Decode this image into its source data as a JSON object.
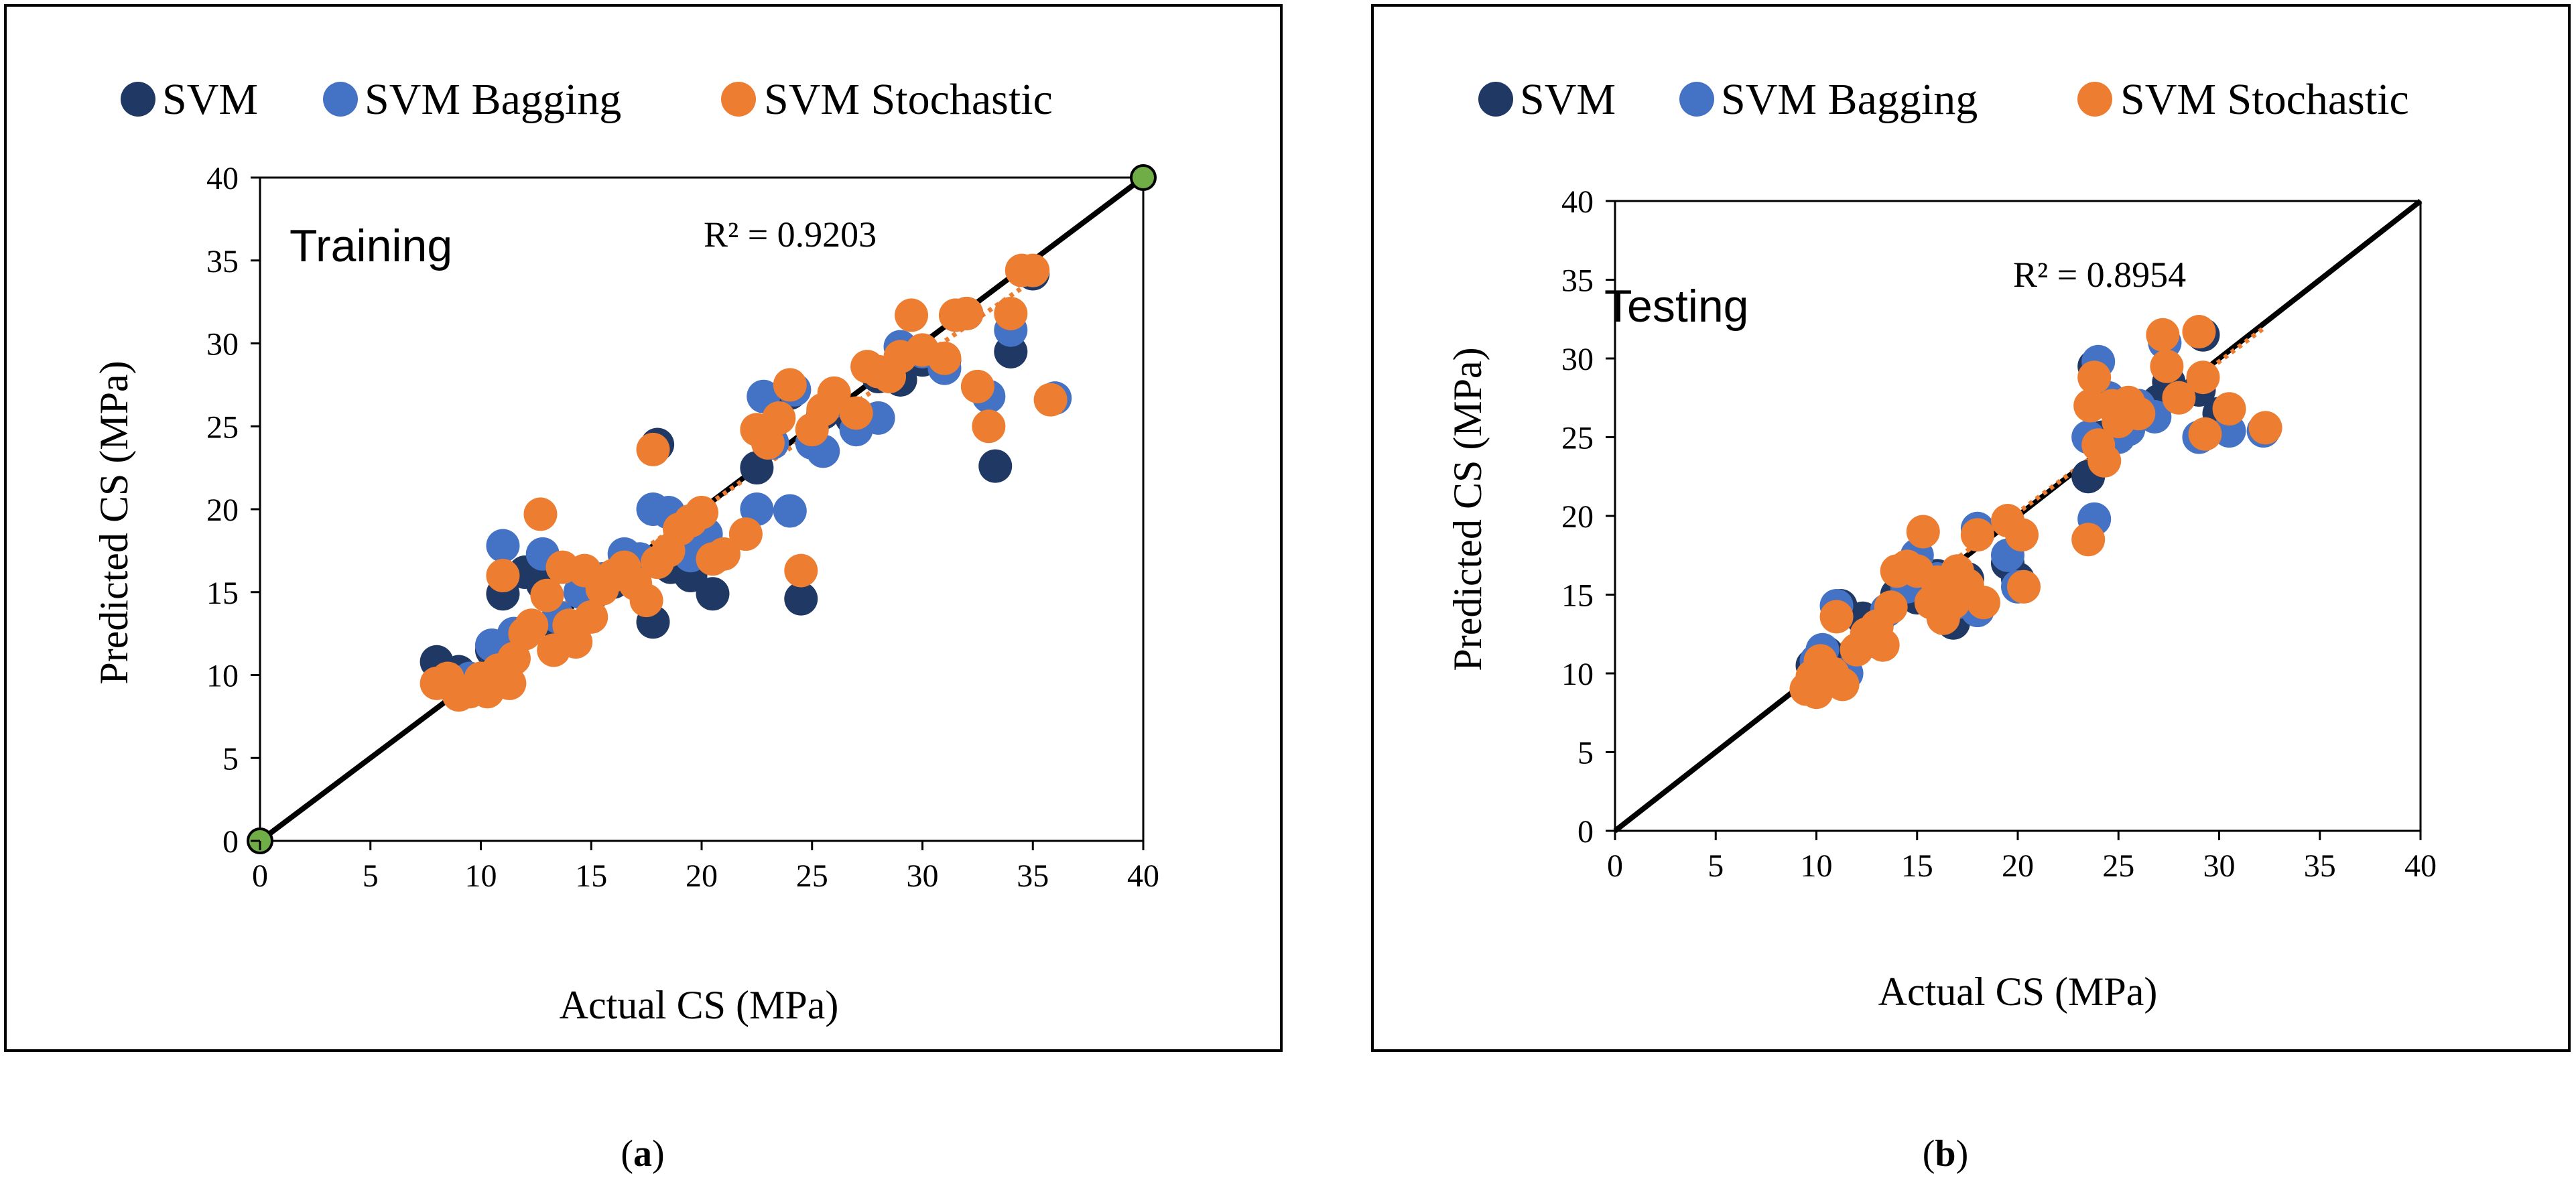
{
  "chart_data": [
    {
      "type": "scatter",
      "panel_label": "Training",
      "caption": "(a)",
      "caption_bold": "a",
      "xlabel": "Actual CS (MPa)",
      "ylabel": "Predicted CS (MPa)",
      "xlim": [
        0,
        40
      ],
      "ylim": [
        0,
        40
      ],
      "xticks": [
        0,
        5,
        10,
        15,
        20,
        25,
        30,
        35,
        40
      ],
      "yticks": [
        0,
        5,
        10,
        15,
        20,
        25,
        30,
        35,
        40
      ],
      "r2_label": "R² = 0.9203",
      "legend": [
        "SVM",
        "SVM Bagging",
        "SVM Stochastic"
      ],
      "colors": {
        "SVM": "#203864",
        "SVM Bagging": "#4472c4",
        "SVM Stochastic": "#ed7d31",
        "endpoint": "#70ad47"
      },
      "ideal_line": {
        "from": [
          0,
          0
        ],
        "to": [
          40,
          40
        ],
        "endpoint_markers": true
      },
      "trendline": {
        "x0": 8,
        "x1": 35,
        "slope": 0.92,
        "intercept": 1.6
      },
      "series": [
        {
          "name": "SVM",
          "points": [
            [
              8,
              10.8
            ],
            [
              9,
              10.2
            ],
            [
              10.5,
              11.5
            ],
            [
              11,
              14.9
            ],
            [
              12,
              16.2
            ],
            [
              12.8,
              15.5
            ],
            [
              13.5,
              13
            ],
            [
              14.2,
              12.8
            ],
            [
              15,
              14.8
            ],
            [
              16,
              15.6
            ],
            [
              17,
              16.8
            ],
            [
              17.8,
              13.2
            ],
            [
              18,
              23.9
            ],
            [
              18.6,
              16.5
            ],
            [
              19.5,
              16
            ],
            [
              20.5,
              14.9
            ],
            [
              22.5,
              22.5
            ],
            [
              23,
              24.5
            ],
            [
              24,
              27
            ],
            [
              24.5,
              14.6
            ],
            [
              25.5,
              25.8
            ],
            [
              26.8,
              25.5
            ],
            [
              28,
              28
            ],
            [
              29,
              27.8
            ],
            [
              30,
              29
            ],
            [
              31,
              29
            ],
            [
              32,
              31.8
            ],
            [
              33.3,
              22.6
            ],
            [
              34,
              29.5
            ],
            [
              35,
              34.2
            ]
          ]
        },
        {
          "name": "SVM Bagging",
          "points": [
            [
              8.5,
              9.5
            ],
            [
              9.5,
              9.8
            ],
            [
              10.5,
              11.8
            ],
            [
              11,
              17.8
            ],
            [
              11.5,
              12.5
            ],
            [
              12.8,
              17.3
            ],
            [
              13.5,
              13.5
            ],
            [
              14.5,
              15
            ],
            [
              15.5,
              15.8
            ],
            [
              16.5,
              17.3
            ],
            [
              17.2,
              17
            ],
            [
              17.8,
              20
            ],
            [
              18.5,
              19.8
            ],
            [
              19.5,
              17.2
            ],
            [
              20.2,
              18.5
            ],
            [
              22.5,
              20
            ],
            [
              22.8,
              26.8
            ],
            [
              23.2,
              24
            ],
            [
              24,
              19.9
            ],
            [
              24.2,
              27.2
            ],
            [
              25,
              24
            ],
            [
              25.5,
              23.5
            ],
            [
              26,
              26.5
            ],
            [
              27,
              24.8
            ],
            [
              28,
              25.5
            ],
            [
              29,
              29.8
            ],
            [
              30,
              29.5
            ],
            [
              31,
              28.5
            ],
            [
              33,
              26.8
            ],
            [
              34,
              30.8
            ],
            [
              36,
              26.7
            ]
          ]
        },
        {
          "name": "SVM Stochastic",
          "points": [
            [
              8,
              9.5
            ],
            [
              8.5,
              9.8
            ],
            [
              9,
              8.8
            ],
            [
              9.5,
              9
            ],
            [
              10,
              9.8
            ],
            [
              10.3,
              9
            ],
            [
              10.8,
              10.3
            ],
            [
              11,
              16
            ],
            [
              11.3,
              9.5
            ],
            [
              11.5,
              11
            ],
            [
              12,
              12.5
            ],
            [
              12.3,
              13
            ],
            [
              12.7,
              19.7
            ],
            [
              13,
              14.8
            ],
            [
              13.3,
              11.5
            ],
            [
              13.7,
              16.5
            ],
            [
              14,
              13
            ],
            [
              14.3,
              12
            ],
            [
              14.7,
              16.3
            ],
            [
              15,
              13.5
            ],
            [
              15.5,
              15.2
            ],
            [
              16,
              16
            ],
            [
              16.5,
              16.5
            ],
            [
              17,
              15.5
            ],
            [
              17.5,
              14.5
            ],
            [
              17.8,
              23.6
            ],
            [
              18,
              16.8
            ],
            [
              18.5,
              17.5
            ],
            [
              19,
              18.8
            ],
            [
              19.5,
              19.3
            ],
            [
              20,
              19.8
            ],
            [
              20.5,
              17
            ],
            [
              21,
              17.3
            ],
            [
              22,
              18.5
            ],
            [
              22.5,
              24.8
            ],
            [
              23,
              24
            ],
            [
              23.5,
              25.5
            ],
            [
              24,
              27.5
            ],
            [
              24.5,
              16.3
            ],
            [
              25,
              24.8
            ],
            [
              25.5,
              26
            ],
            [
              26,
              27
            ],
            [
              27,
              25.8
            ],
            [
              27.5,
              28.6
            ],
            [
              28,
              28.3
            ],
            [
              28.5,
              28
            ],
            [
              29,
              29.2
            ],
            [
              29.5,
              31.7
            ],
            [
              30,
              29.6
            ],
            [
              31,
              29.1
            ],
            [
              31.5,
              31.7
            ],
            [
              32,
              31.8
            ],
            [
              32.5,
              27.4
            ],
            [
              33,
              25
            ],
            [
              34,
              31.8
            ],
            [
              34.5,
              34.4
            ],
            [
              35,
              34.4
            ],
            [
              35.8,
              26.6
            ]
          ]
        }
      ]
    },
    {
      "type": "scatter",
      "panel_label": "Testing",
      "caption": "(b)",
      "caption_bold": "b",
      "xlabel": "Actual CS (MPa)",
      "ylabel": "Predicted CS (MPa)",
      "xlim": [
        0,
        40
      ],
      "ylim": [
        0,
        40
      ],
      "xticks": [
        0,
        5,
        10,
        15,
        20,
        25,
        30,
        35,
        40
      ],
      "yticks": [
        0,
        5,
        10,
        15,
        20,
        25,
        30,
        35,
        40
      ],
      "r2_label": "R² = 0.8954",
      "legend": [
        "SVM",
        "SVM Bagging",
        "SVM Stochastic"
      ],
      "colors": {
        "SVM": "#203864",
        "SVM Bagging": "#4472c4",
        "SVM Stochastic": "#ed7d31",
        "endpoint": "#70ad47"
      },
      "ideal_line": {
        "from": [
          0,
          0
        ],
        "to": [
          40,
          40
        ],
        "endpoint_markers": false
      },
      "trendline": {
        "x0": 9.5,
        "x1": 32.3,
        "slope": 0.96,
        "intercept": 1.0
      },
      "series": [
        {
          "name": "SVM",
          "points": [
            [
              9.8,
              10.5
            ],
            [
              10.2,
              11
            ],
            [
              10.5,
              11.3
            ],
            [
              11.2,
              14.3
            ],
            [
              12.3,
              13.5
            ],
            [
              13,
              13
            ],
            [
              14,
              15
            ],
            [
              15,
              14.8
            ],
            [
              16,
              16.2
            ],
            [
              16.5,
              15
            ],
            [
              16.8,
              13.2
            ],
            [
              17.5,
              16
            ],
            [
              18,
              14
            ],
            [
              19.5,
              17
            ],
            [
              20,
              16
            ],
            [
              23.5,
              22.5
            ],
            [
              23.8,
              29.5
            ],
            [
              24.2,
              25
            ],
            [
              25,
              26.5
            ],
            [
              26,
              27
            ],
            [
              27,
              27.3
            ],
            [
              27.5,
              28.5
            ],
            [
              29,
              28
            ],
            [
              29.2,
              31.5
            ],
            [
              30,
              26.5
            ]
          ]
        },
        {
          "name": "SVM Bagging",
          "points": [
            [
              10,
              10.8
            ],
            [
              10.3,
              11.5
            ],
            [
              11,
              14.3
            ],
            [
              11.5,
              10
            ],
            [
              12.5,
              12
            ],
            [
              13.5,
              14
            ],
            [
              14.5,
              15.5
            ],
            [
              15,
              17.5
            ],
            [
              16,
              16
            ],
            [
              17,
              14.5
            ],
            [
              18,
              19.2
            ],
            [
              18,
              14
            ],
            [
              19.5,
              17.5
            ],
            [
              20,
              15.5
            ],
            [
              23.5,
              25
            ],
            [
              23.8,
              19.8
            ],
            [
              24,
              29.8
            ],
            [
              24.5,
              27.5
            ],
            [
              25,
              25
            ],
            [
              25.5,
              25.5
            ],
            [
              26,
              27
            ],
            [
              26.8,
              26.3
            ],
            [
              27.3,
              31
            ],
            [
              29,
              25
            ],
            [
              30.5,
              25.4
            ],
            [
              32.2,
              25.4
            ]
          ]
        },
        {
          "name": "SVM Stochastic",
          "points": [
            [
              9.5,
              9
            ],
            [
              9.8,
              9.8
            ],
            [
              10,
              8.8
            ],
            [
              10.2,
              10.8
            ],
            [
              10.5,
              9.5
            ],
            [
              10.8,
              10
            ],
            [
              11,
              13.6
            ],
            [
              11.3,
              9.3
            ],
            [
              12,
              11.5
            ],
            [
              12.5,
              12.5
            ],
            [
              13,
              13
            ],
            [
              13.3,
              11.8
            ],
            [
              13.7,
              14.2
            ],
            [
              14,
              16.5
            ],
            [
              14.5,
              16.8
            ],
            [
              15,
              16.5
            ],
            [
              15.3,
              19
            ],
            [
              15.7,
              14.5
            ],
            [
              16,
              15.8
            ],
            [
              16.3,
              13.5
            ],
            [
              16.8,
              14.5
            ],
            [
              17,
              16.5
            ],
            [
              17.5,
              15.6
            ],
            [
              18,
              18.8
            ],
            [
              18.3,
              14.5
            ],
            [
              19.5,
              19.7
            ],
            [
              20.2,
              18.8
            ],
            [
              20.3,
              15.5
            ],
            [
              23.5,
              18.5
            ],
            [
              23.6,
              27
            ],
            [
              23.8,
              28.8
            ],
            [
              24,
              24.5
            ],
            [
              24.3,
              23.5
            ],
            [
              24.7,
              27
            ],
            [
              25,
              26
            ],
            [
              25.5,
              27.2
            ],
            [
              26,
              26.5
            ],
            [
              27.2,
              31.5
            ],
            [
              27.4,
              29.5
            ],
            [
              28,
              27.5
            ],
            [
              29,
              31.7
            ],
            [
              29.2,
              28.8
            ],
            [
              29.3,
              25.2
            ],
            [
              30.5,
              26.8
            ],
            [
              32.3,
              25.6
            ]
          ]
        }
      ]
    }
  ]
}
